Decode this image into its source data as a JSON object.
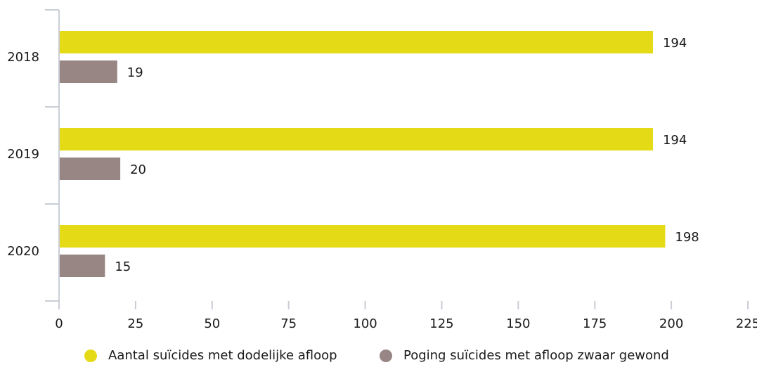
{
  "chart_data": {
    "type": "bar",
    "orientation": "horizontal",
    "categories": [
      "2018",
      "2019",
      "2020"
    ],
    "series": [
      {
        "name": "Aantal suïcides met dodelijke afloop",
        "values": [
          194,
          194,
          198
        ],
        "color": "#e4db16"
      },
      {
        "name": "Poging suïcides met afloop zwaar gewond",
        "values": [
          19,
          20,
          15
        ],
        "color": "#978683"
      }
    ],
    "xlim": [
      0,
      225
    ],
    "xticks": [
      0,
      25,
      50,
      75,
      100,
      125,
      150,
      175,
      200,
      225
    ],
    "grid": false,
    "legend_position": "bottom",
    "title": "",
    "xlabel": "",
    "ylabel": ""
  }
}
